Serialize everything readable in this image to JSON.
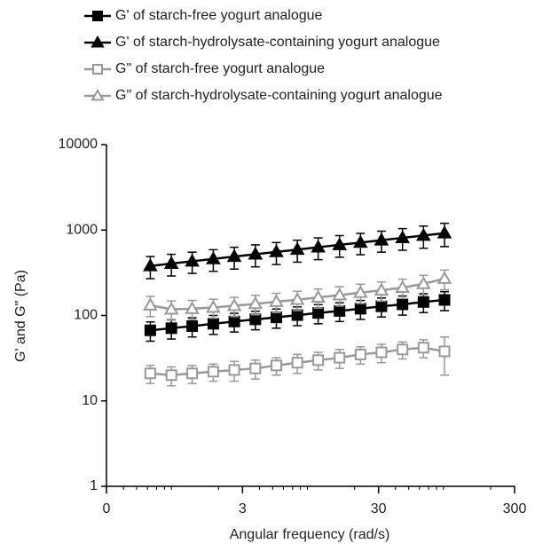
{
  "chart_data": {
    "type": "line",
    "x_label": "Angular frequency (rad/s)",
    "y_label": "G' and G\" (Pa)",
    "log_x": true,
    "log_y": true,
    "xlim": [
      0.3,
      300
    ],
    "ylim": [
      1,
      10000
    ],
    "xticks": [
      {
        "value": 0.3,
        "label": "0"
      },
      3,
      30,
      300
    ],
    "yticks": [
      1,
      10,
      100,
      1000,
      10000
    ],
    "x": [
      0.63,
      0.9,
      1.28,
      1.83,
      2.61,
      3.73,
      5.32,
      7.59,
      10.8,
      15.5,
      22.1,
      31.5,
      45,
      64.2,
      91.6
    ],
    "series": [
      {
        "name": "G' of starch-free yogurt analogue",
        "color": "#000000",
        "marker": "square",
        "filled": true,
        "values": [
          67,
          71,
          75,
          80,
          85,
          90,
          95,
          101,
          107,
          113,
          120,
          128,
          135,
          144,
          152
        ],
        "errors": [
          17,
          18,
          19,
          20,
          21,
          22,
          24,
          25,
          27,
          28,
          30,
          32,
          34,
          36,
          38
        ]
      },
      {
        "name": "G' of starch-hydrolysate-containing yogurt analogue",
        "color": "#000000",
        "marker": "triangle",
        "filled": true,
        "values": [
          380,
          405,
          431,
          459,
          489,
          521,
          555,
          591,
          630,
          671,
          714,
          761,
          810,
          863,
          920
        ],
        "errors": [
          110,
          115,
          120,
          130,
          140,
          150,
          160,
          170,
          180,
          190,
          200,
          210,
          230,
          250,
          280
        ]
      },
      {
        "name": "G\" of starch-free yogurt analogue",
        "color": "#999999",
        "marker": "square",
        "filled": false,
        "values": [
          21,
          20,
          21,
          22,
          23,
          24,
          26,
          28,
          30,
          32,
          35,
          37,
          40,
          42,
          38
        ],
        "errors": [
          5,
          5,
          5,
          5,
          6,
          6,
          6,
          7,
          7,
          8,
          8,
          9,
          9,
          10,
          18
        ]
      },
      {
        "name": "G\" of starch-hydrolysate-containing yogurt analogue",
        "color": "#999999",
        "marker": "triangle",
        "filled": false,
        "values": [
          132,
          118,
          120,
          124,
          130,
          137,
          145,
          153,
          163,
          173,
          185,
          197,
          212,
          235,
          270
        ],
        "errors": [
          35,
          30,
          30,
          31,
          33,
          35,
          37,
          39,
          41,
          44,
          47,
          50,
          54,
          60,
          70
        ]
      }
    ]
  }
}
